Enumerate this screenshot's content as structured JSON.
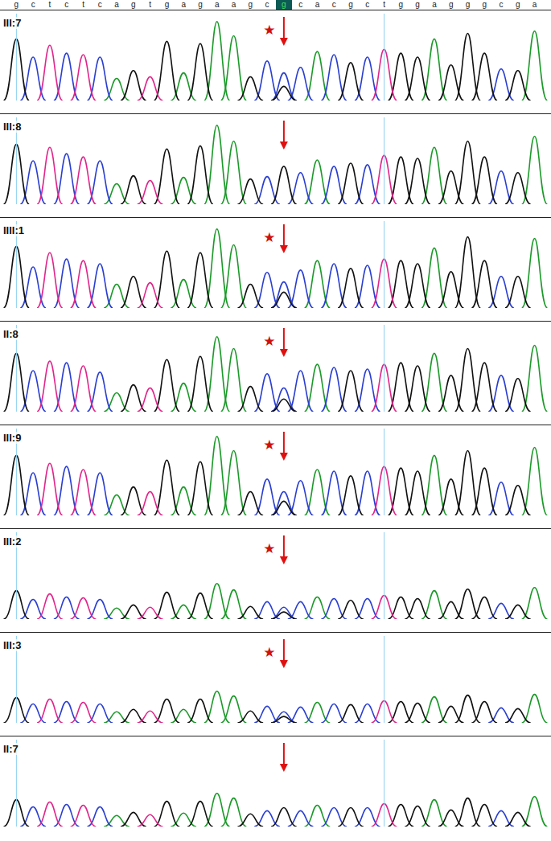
{
  "header_sequence": "gctctcagtgagaagcgcacgctggagggcga",
  "highlight_index": 16,
  "chart_data": [
    {
      "type": "chromatogram",
      "title": "III:7",
      "annotation": "★",
      "arrow_index": 16,
      "cursors": [
        0,
        22
      ],
      "ylim": [
        0,
        110
      ],
      "tick_labels": "x",
      "categories": [
        "G",
        "C",
        "T",
        "C",
        "T",
        "C",
        "A",
        "G",
        "T",
        "G",
        "A",
        "G",
        "A",
        "A",
        "G",
        "C",
        "C",
        "C",
        "A",
        "C",
        "G",
        "C",
        "T",
        "G",
        "G",
        "A",
        "G",
        "G",
        "G",
        "C",
        "G",
        "A"
      ],
      "values": [
        78,
        55,
        70,
        60,
        58,
        55,
        28,
        38,
        30,
        75,
        35,
        72,
        100,
        82,
        30,
        50,
        35,
        42,
        62,
        58,
        48,
        55,
        65,
        60,
        55,
        78,
        45,
        85,
        60,
        40,
        38,
        88
      ],
      "secondary": {
        "index": 16,
        "base": "G",
        "value": 18
      }
    },
    {
      "type": "chromatogram",
      "title": "III:8",
      "arrow_index": 16,
      "cursors": [
        0,
        22
      ],
      "ylim": [
        0,
        110
      ],
      "tick_labels": "x",
      "categories": [
        "G",
        "C",
        "T",
        "C",
        "T",
        "C",
        "A",
        "G",
        "T",
        "G",
        "A",
        "G",
        "A",
        "A",
        "G",
        "C",
        "G",
        "C",
        "A",
        "C",
        "G",
        "C",
        "T",
        "G",
        "G",
        "A",
        "G",
        "G",
        "G",
        "C",
        "G",
        "A"
      ],
      "values": [
        76,
        55,
        72,
        64,
        60,
        55,
        26,
        36,
        30,
        70,
        34,
        74,
        100,
        80,
        32,
        35,
        48,
        40,
        56,
        48,
        52,
        50,
        62,
        60,
        58,
        72,
        42,
        80,
        60,
        42,
        40,
        86
      ],
      "secondary": null
    },
    {
      "type": "chromatogram",
      "title": "IIII:1",
      "annotation": "★",
      "arrow_index": 16,
      "cursors": [
        0,
        22
      ],
      "ylim": [
        0,
        110
      ],
      "tick_labels": "x",
      "categories": [
        "G",
        "C",
        "T",
        "C",
        "T",
        "C",
        "A",
        "G",
        "T",
        "G",
        "A",
        "G",
        "A",
        "A",
        "G",
        "C",
        "C",
        "C",
        "A",
        "C",
        "G",
        "C",
        "T",
        "G",
        "G",
        "A",
        "G",
        "G",
        "G",
        "C",
        "G",
        "A"
      ],
      "values": [
        78,
        52,
        70,
        62,
        60,
        56,
        30,
        40,
        32,
        72,
        36,
        70,
        100,
        80,
        30,
        45,
        33,
        48,
        60,
        56,
        50,
        54,
        62,
        60,
        56,
        76,
        46,
        90,
        60,
        40,
        40,
        88
      ],
      "secondary": {
        "index": 16,
        "base": "G",
        "value": 20
      }
    },
    {
      "type": "chromatogram",
      "title": "II:8",
      "annotation": "★",
      "arrow_index": 16,
      "cursors": [
        0,
        22
      ],
      "ylim": [
        0,
        110
      ],
      "tick_labels": "x",
      "categories": [
        "G",
        "C",
        "T",
        "C",
        "T",
        "C",
        "A",
        "G",
        "T",
        "G",
        "A",
        "G",
        "A",
        "A",
        "G",
        "C",
        "C",
        "C",
        "A",
        "C",
        "G",
        "C",
        "T",
        "G",
        "G",
        "A",
        "G",
        "G",
        "G",
        "C",
        "G",
        "A"
      ],
      "values": [
        74,
        52,
        64,
        62,
        58,
        50,
        24,
        34,
        30,
        66,
        36,
        70,
        95,
        80,
        32,
        48,
        30,
        52,
        60,
        56,
        52,
        54,
        60,
        62,
        58,
        74,
        46,
        80,
        62,
        46,
        42,
        84
      ],
      "secondary": {
        "index": 16,
        "base": "G",
        "value": 16
      }
    },
    {
      "type": "chromatogram",
      "title": "III:9",
      "annotation": "★",
      "arrow_index": 16,
      "cursors": [
        0,
        22
      ],
      "ylim": [
        0,
        110
      ],
      "tick_labels": "x",
      "categories": [
        "G",
        "C",
        "T",
        "C",
        "T",
        "C",
        "A",
        "G",
        "T",
        "G",
        "A",
        "G",
        "A",
        "A",
        "G",
        "C",
        "C",
        "C",
        "A",
        "C",
        "G",
        "C",
        "T",
        "G",
        "G",
        "A",
        "G",
        "G",
        "G",
        "C",
        "G",
        "A"
      ],
      "values": [
        76,
        54,
        66,
        62,
        58,
        54,
        26,
        36,
        30,
        70,
        36,
        68,
        100,
        82,
        30,
        46,
        30,
        44,
        58,
        56,
        50,
        56,
        62,
        60,
        56,
        76,
        46,
        82,
        60,
        42,
        38,
        86
      ],
      "secondary": {
        "index": 16,
        "base": "G",
        "value": 18
      }
    },
    {
      "type": "chromatogram",
      "title": "III:2",
      "annotation": "★",
      "arrow_index": 16,
      "cursors": [
        0,
        22
      ],
      "ylim": [
        0,
        110
      ],
      "tick_labels": "x",
      "categories": [
        "G",
        "C",
        "T",
        "C",
        "T",
        "C",
        "A",
        "G",
        "T",
        "G",
        "A",
        "G",
        "A",
        "A",
        "G",
        "C",
        "C",
        "C",
        "A",
        "C",
        "G",
        "C",
        "T",
        "G",
        "G",
        "A",
        "G",
        "G",
        "G",
        "C",
        "G",
        "A"
      ],
      "values": [
        36,
        25,
        32,
        28,
        27,
        25,
        14,
        18,
        15,
        34,
        18,
        33,
        45,
        37,
        16,
        22,
        15,
        22,
        28,
        26,
        24,
        26,
        30,
        28,
        26,
        36,
        22,
        38,
        28,
        20,
        18,
        40
      ],
      "secondary": {
        "index": 16,
        "base": "G",
        "value": 9
      }
    },
    {
      "type": "chromatogram",
      "title": "III:3",
      "annotation": "★",
      "arrow_index": 16,
      "cursors": [
        0,
        22
      ],
      "ylim": [
        0,
        110
      ],
      "tick_labels": "x",
      "categories": [
        "G",
        "C",
        "T",
        "C",
        "T",
        "C",
        "A",
        "G",
        "T",
        "G",
        "A",
        "G",
        "A",
        "A",
        "G",
        "C",
        "C",
        "C",
        "A",
        "C",
        "G",
        "C",
        "T",
        "G",
        "G",
        "A",
        "G",
        "G",
        "G",
        "C",
        "G",
        "A"
      ],
      "values": [
        32,
        24,
        30,
        27,
        26,
        24,
        14,
        17,
        15,
        30,
        17,
        30,
        40,
        34,
        15,
        21,
        14,
        20,
        26,
        24,
        23,
        24,
        28,
        27,
        25,
        33,
        21,
        35,
        27,
        19,
        18,
        36
      ],
      "secondary": {
        "index": 16,
        "base": "G",
        "value": 8
      }
    },
    {
      "type": "chromatogram",
      "title": "II:7",
      "arrow_index": 16,
      "cursors": [
        0,
        22
      ],
      "ylim": [
        0,
        110
      ],
      "tick_labels": "x",
      "categories": [
        "G",
        "C",
        "T",
        "C",
        "T",
        "C",
        "A",
        "G",
        "T",
        "G",
        "A",
        "G",
        "A",
        "A",
        "G",
        "C",
        "G",
        "C",
        "A",
        "C",
        "G",
        "C",
        "T",
        "G",
        "G",
        "A",
        "G",
        "G",
        "G",
        "C",
        "G",
        "A"
      ],
      "values": [
        34,
        25,
        31,
        28,
        27,
        25,
        14,
        18,
        15,
        32,
        17,
        32,
        42,
        36,
        16,
        20,
        24,
        20,
        27,
        24,
        24,
        24,
        29,
        28,
        26,
        34,
        21,
        36,
        28,
        20,
        18,
        38
      ],
      "secondary": null
    }
  ]
}
